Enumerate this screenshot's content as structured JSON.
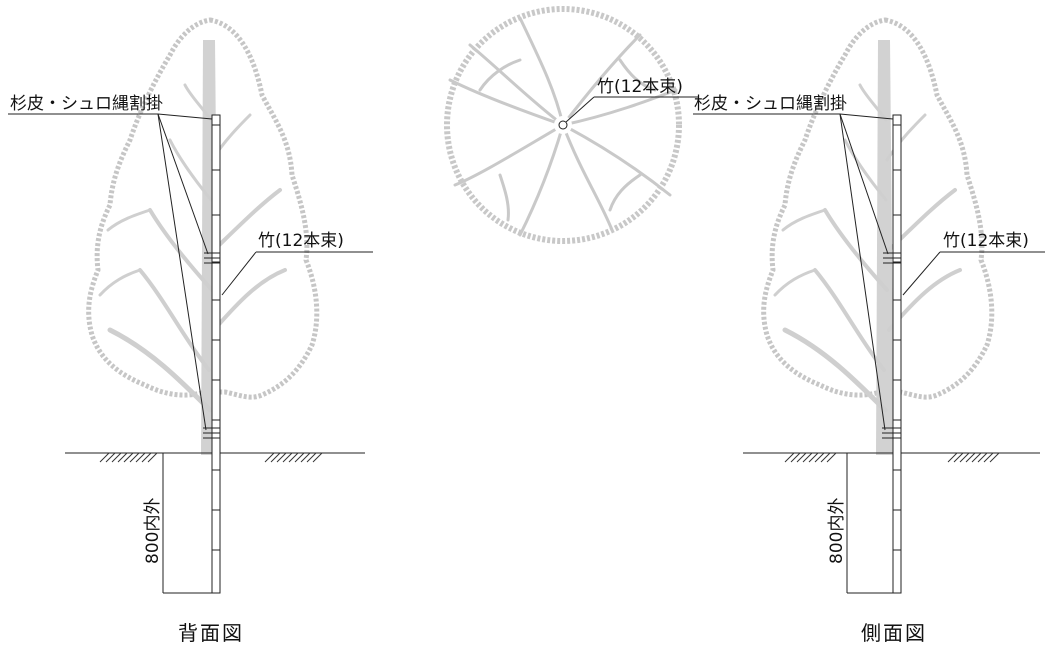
{
  "labels": {
    "binding": "杉皮・シュロ縄割掛",
    "bamboo": "竹(12本束)",
    "depth": "800内外",
    "back_view": "背面図",
    "side_view": "側面図"
  }
}
